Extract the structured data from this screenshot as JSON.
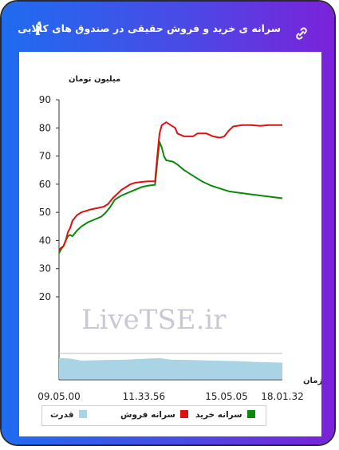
{
  "header": {
    "title": "سرانه ی خرید و فروش حقیقی در صندوق های کالایی",
    "info_icon": "info-icon",
    "link_icon": "link-icon"
  },
  "watermark": "LiveTSE.ir",
  "colors": {
    "sell": "#e01010",
    "buy": "#0a8a0a",
    "power": "#a9d4e6"
  },
  "chart_data": {
    "type": "line",
    "ylabel": "میلیون تومان",
    "xlabel": "زمان",
    "ylim": [
      0,
      90
    ],
    "yticks": [
      20,
      30,
      40,
      50,
      60,
      70,
      80,
      90
    ],
    "x_tick_labels": [
      {
        "label": "09.05.00",
        "at": 0
      },
      {
        "label": "11.33.56",
        "at": 0.38
      },
      {
        "label": "15.05.05",
        "at": 0.75
      },
      {
        "label": "18.01.32",
        "at": 1
      }
    ],
    "grid": false,
    "legend_position": "bottom",
    "series": [
      {
        "name": "سرانه فروش",
        "color": "#e01010",
        "points": [
          [
            0,
            36.5
          ],
          [
            0.01,
            37.5
          ],
          [
            0.02,
            38
          ],
          [
            0.03,
            40
          ],
          [
            0.04,
            43
          ],
          [
            0.05,
            44.5
          ],
          [
            0.06,
            47
          ],
          [
            0.08,
            49
          ],
          [
            0.1,
            50
          ],
          [
            0.12,
            50.5
          ],
          [
            0.14,
            51
          ],
          [
            0.17,
            51.5
          ],
          [
            0.2,
            52
          ],
          [
            0.22,
            53
          ],
          [
            0.24,
            55
          ],
          [
            0.26,
            56.5
          ],
          [
            0.28,
            58
          ],
          [
            0.3,
            59
          ],
          [
            0.32,
            60
          ],
          [
            0.34,
            60.5
          ],
          [
            0.37,
            60.8
          ],
          [
            0.4,
            61
          ],
          [
            0.43,
            61
          ],
          [
            0.44,
            70
          ],
          [
            0.45,
            78
          ],
          [
            0.46,
            81
          ],
          [
            0.48,
            82
          ],
          [
            0.5,
            81
          ],
          [
            0.52,
            80
          ],
          [
            0.53,
            78
          ],
          [
            0.56,
            77
          ],
          [
            0.6,
            77
          ],
          [
            0.62,
            78
          ],
          [
            0.66,
            78
          ],
          [
            0.69,
            77
          ],
          [
            0.72,
            76.5
          ],
          [
            0.74,
            77
          ],
          [
            0.76,
            79
          ],
          [
            0.78,
            80.5
          ],
          [
            0.82,
            81
          ],
          [
            0.86,
            81
          ],
          [
            0.9,
            80.7
          ],
          [
            0.94,
            81
          ],
          [
            0.97,
            81
          ],
          [
            1,
            81
          ]
        ]
      },
      {
        "name": "سرانه خرید",
        "color": "#0a8a0a",
        "points": [
          [
            0,
            35.5
          ],
          [
            0.01,
            37
          ],
          [
            0.02,
            38
          ],
          [
            0.03,
            40
          ],
          [
            0.04,
            41.5
          ],
          [
            0.05,
            42
          ],
          [
            0.06,
            41.5
          ],
          [
            0.08,
            43.5
          ],
          [
            0.1,
            45
          ],
          [
            0.13,
            46.5
          ],
          [
            0.16,
            47.5
          ],
          [
            0.19,
            48.5
          ],
          [
            0.21,
            50
          ],
          [
            0.23,
            52
          ],
          [
            0.25,
            54.5
          ],
          [
            0.28,
            56
          ],
          [
            0.31,
            57
          ],
          [
            0.34,
            58
          ],
          [
            0.37,
            59
          ],
          [
            0.4,
            59.5
          ],
          [
            0.43,
            59.8
          ],
          [
            0.44,
            68
          ],
          [
            0.45,
            75
          ],
          [
            0.46,
            73
          ],
          [
            0.47,
            70
          ],
          [
            0.48,
            68.5
          ],
          [
            0.51,
            68
          ],
          [
            0.53,
            67
          ],
          [
            0.56,
            65
          ],
          [
            0.6,
            63
          ],
          [
            0.64,
            61
          ],
          [
            0.68,
            59.5
          ],
          [
            0.72,
            58.5
          ],
          [
            0.76,
            57.5
          ],
          [
            0.8,
            57
          ],
          [
            0.85,
            56.5
          ],
          [
            0.9,
            56
          ],
          [
            0.95,
            55.5
          ],
          [
            1,
            55
          ]
        ]
      },
      {
        "name": "قدرت",
        "color": "#a9d4e6",
        "points": [
          [
            0,
            0.82
          ],
          [
            0.05,
            0.8
          ],
          [
            0.1,
            0.72
          ],
          [
            0.2,
            0.74
          ],
          [
            0.3,
            0.76
          ],
          [
            0.4,
            0.8
          ],
          [
            0.45,
            0.82
          ],
          [
            0.5,
            0.76
          ],
          [
            0.6,
            0.74
          ],
          [
            0.7,
            0.72
          ],
          [
            0.8,
            0.7
          ],
          [
            0.9,
            0.66
          ],
          [
            1,
            0.64
          ]
        ]
      }
    ]
  }
}
